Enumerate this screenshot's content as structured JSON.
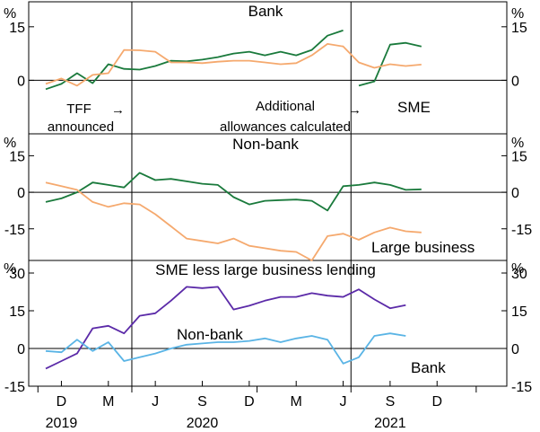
{
  "colors": {
    "sme_bank": "#1a7a3c",
    "large_business": "#f5a96e",
    "non_bank": "#5b2aa8",
    "bank": "#5ab4e5",
    "axis": "#000000",
    "zero_line": "#000000"
  },
  "chart_data": {
    "type": "line",
    "x_unit": "month index from Sep 2019 (0 = Sep 2019)",
    "x_range": [
      0,
      28
    ],
    "month_ticks": [
      {
        "m": 1,
        "label": "D"
      },
      {
        "m": 4,
        "label": "M"
      },
      {
        "m": 7,
        "label": "J"
      },
      {
        "m": 10,
        "label": "S"
      },
      {
        "m": 13,
        "label": "D"
      },
      {
        "m": 16,
        "label": "M"
      },
      {
        "m": 19,
        "label": "J"
      },
      {
        "m": 22,
        "label": "S"
      },
      {
        "m": 25,
        "label": "D"
      }
    ],
    "year_labels": [
      {
        "m": 1,
        "label": "2019"
      },
      {
        "m": 10,
        "label": "2020"
      },
      {
        "m": 22,
        "label": "2021"
      }
    ],
    "event_lines": [
      {
        "m": 5.5,
        "label": "TFF announced"
      },
      {
        "m": 19.5,
        "label": "Additional allowances calculated"
      }
    ],
    "panels": [
      {
        "id": "bank",
        "title": "Bank",
        "unit": "%",
        "ylim": [
          -15,
          22
        ],
        "ticks": [
          0,
          15
        ],
        "tick_labels": [
          "0",
          "15"
        ],
        "series": [
          {
            "name": "SME",
            "color_key": "sme_bank",
            "points": [
              [
                0,
                -2.5
              ],
              [
                1,
                -1
              ],
              [
                2,
                2
              ],
              [
                3,
                -0.8
              ],
              [
                4,
                4.5
              ],
              [
                5,
                3.2
              ],
              [
                6,
                3
              ],
              [
                7,
                4
              ],
              [
                8,
                5.5
              ],
              [
                9,
                5.3
              ],
              [
                10,
                5.8
              ],
              [
                11,
                6.5
              ],
              [
                12,
                7.5
              ],
              [
                13,
                8
              ],
              [
                14,
                7
              ],
              [
                15,
                8
              ],
              [
                16,
                7
              ],
              [
                17,
                8.5
              ],
              [
                18,
                12.5
              ],
              [
                19,
                14
              ],
              null,
              [
                20,
                -1.5
              ],
              [
                21,
                -0.3
              ],
              [
                22,
                10
              ],
              [
                23,
                10.5
              ],
              [
                24,
                9.5
              ]
            ]
          },
          {
            "name": "Large business",
            "color_key": "large_business",
            "points": [
              [
                0,
                -1
              ],
              [
                1,
                0.5
              ],
              [
                2,
                -1.5
              ],
              [
                3,
                1.5
              ],
              [
                4,
                2
              ],
              [
                5,
                8.5
              ],
              [
                6,
                8.4
              ],
              [
                7,
                8
              ],
              [
                8,
                5
              ],
              [
                9,
                5
              ],
              [
                10,
                4.8
              ],
              [
                11,
                5.2
              ],
              [
                12,
                5.5
              ],
              [
                13,
                5.5
              ],
              [
                14,
                5
              ],
              [
                15,
                4.5
              ],
              [
                16,
                4.8
              ],
              [
                17,
                7
              ],
              [
                18,
                10.2
              ],
              [
                19,
                9.5
              ],
              [
                20,
                5
              ],
              [
                21,
                3.5
              ],
              [
                22,
                4.5
              ],
              [
                23,
                4
              ],
              [
                24,
                4.4
              ]
            ]
          }
        ]
      },
      {
        "id": "non_bank",
        "title": "Non-bank",
        "unit": "%",
        "ylim": [
          -28,
          24
        ],
        "ticks": [
          -15,
          0,
          15
        ],
        "tick_labels": [
          "-15",
          "0",
          "15"
        ],
        "series": [
          {
            "name": "SME",
            "color_key": "sme_bank",
            "points": [
              [
                0,
                -4
              ],
              [
                1,
                -2.5
              ],
              [
                2,
                0
              ],
              [
                3,
                4
              ],
              [
                4,
                3
              ],
              [
                5,
                2
              ],
              [
                6,
                8
              ],
              [
                7,
                5
              ],
              [
                8,
                5.5
              ],
              [
                9,
                4.5
              ],
              [
                10,
                3.5
              ],
              [
                11,
                3
              ],
              [
                12,
                -2
              ],
              [
                13,
                -5
              ],
              [
                14,
                -3.5
              ],
              [
                15,
                -3.2
              ],
              [
                16,
                -3
              ],
              [
                17,
                -3.5
              ],
              [
                18,
                -7.5
              ],
              [
                19,
                2.5
              ],
              [
                20,
                3
              ],
              [
                21,
                4
              ],
              [
                22,
                3
              ],
              [
                23,
                1
              ],
              [
                24,
                1.2
              ]
            ]
          },
          {
            "name": "Large business",
            "color_key": "large_business",
            "points": [
              [
                0,
                4
              ],
              [
                1,
                2.5
              ],
              [
                2,
                1
              ],
              [
                3,
                -4
              ],
              [
                4,
                -6
              ],
              [
                5,
                -4.5
              ],
              [
                6,
                -5
              ],
              [
                7,
                -9
              ],
              [
                8,
                -14
              ],
              [
                9,
                -19
              ],
              [
                10,
                -20
              ],
              [
                11,
                -21
              ],
              [
                12,
                -19
              ],
              [
                13,
                -22
              ],
              [
                14,
                -23
              ],
              [
                15,
                -24
              ],
              [
                16,
                -24.5
              ],
              [
                17,
                -28
              ],
              [
                18,
                -18
              ],
              [
                19,
                -17
              ],
              [
                20,
                -19.5
              ],
              [
                21,
                -16.5
              ],
              [
                22,
                -14.5
              ],
              [
                23,
                -16
              ],
              [
                24,
                -16.5
              ]
            ]
          }
        ]
      },
      {
        "id": "sme_less_large",
        "title": "SME less large business lending",
        "unit": "%",
        "ylim": [
          -15,
          35
        ],
        "ticks": [
          -15,
          0,
          15,
          30
        ],
        "tick_labels": [
          "-15",
          "0",
          "15",
          "30"
        ],
        "series": [
          {
            "name": "Non-bank",
            "color_key": "non_bank",
            "points": [
              [
                0,
                -8
              ],
              [
                1,
                -5
              ],
              [
                2,
                -2
              ],
              [
                3,
                8
              ],
              [
                4,
                9
              ],
              [
                5,
                6
              ],
              [
                6,
                13
              ],
              [
                7,
                14
              ],
              [
                8,
                19
              ],
              [
                9,
                24.5
              ],
              [
                10,
                24
              ],
              [
                11,
                24.5
              ],
              [
                12,
                15.5
              ],
              [
                13,
                17
              ],
              [
                14,
                19
              ],
              [
                15,
                20.5
              ],
              [
                16,
                20.5
              ],
              [
                17,
                22
              ],
              [
                18,
                21
              ],
              [
                19,
                20.5
              ],
              [
                20,
                23.5
              ],
              [
                21,
                19.5
              ],
              [
                22,
                16
              ],
              [
                23,
                17.2
              ]
            ]
          },
          {
            "name": "Bank",
            "color_key": "bank",
            "points": [
              [
                0,
                -1
              ],
              [
                1,
                -1.5
              ],
              [
                2,
                3.5
              ],
              [
                3,
                -1
              ],
              [
                4,
                2.5
              ],
              [
                5,
                -5
              ],
              [
                6,
                -3.5
              ],
              [
                7,
                -2
              ],
              [
                8,
                0
              ],
              [
                9,
                1.5
              ],
              [
                10,
                2
              ],
              [
                11,
                2.5
              ],
              [
                12,
                2.5
              ],
              [
                13,
                3
              ],
              [
                14,
                4
              ],
              [
                15,
                2.5
              ],
              [
                16,
                4
              ],
              [
                17,
                5
              ],
              [
                18,
                3.5
              ],
              [
                19,
                -6
              ],
              [
                20,
                -3.5
              ],
              [
                21,
                5
              ],
              [
                22,
                6
              ],
              [
                23,
                5
              ]
            ]
          }
        ]
      }
    ],
    "labels": {
      "panel_bank_sme": "SME",
      "panel_nonbank_large": "Large business",
      "panel_diff_nonbank": "Non-bank",
      "panel_diff_bank": "Bank",
      "tff_line1": "TFF",
      "tff_line2": "announced",
      "arrow": "→",
      "alloc_line1": "Additional",
      "alloc_line2": "allowances calculated"
    }
  }
}
